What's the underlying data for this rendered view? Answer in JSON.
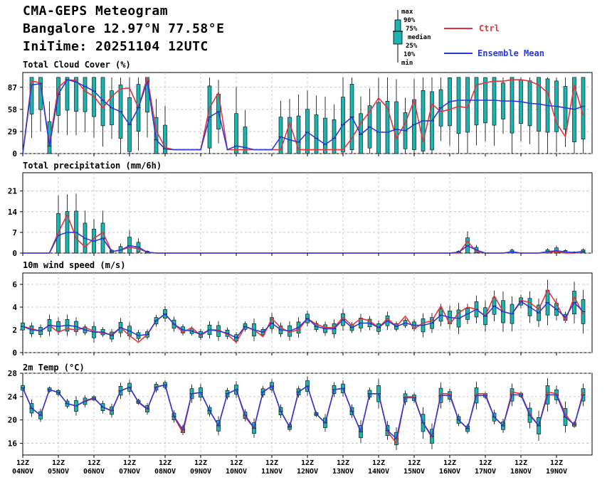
{
  "header": {
    "title": "CMA-GEPS Meteogram",
    "location": "Bangalore 12.97°N 77.58°E",
    "init": "IniTime: 20251104 12UTC"
  },
  "legend": {
    "box_labels": [
      "max",
      "90%",
      "75%",
      "median",
      "25%",
      "10%",
      "min"
    ],
    "ctrl": "Ctrl",
    "mean": "Ensemble Mean",
    "ctrl_color": "#e8333a",
    "mean_color": "#2b3bd9",
    "box_color": "#1ab5b0"
  },
  "panels": {
    "cloud": "Total Cloud Cover (%)",
    "precip": "Total precipitation (mm/6h)",
    "wind": "10m wind speed (m/s)",
    "temp": "2m Temp (°C)"
  },
  "chart_data": [
    {
      "type": "line",
      "title": "Total Cloud Cover (%)",
      "x_start": "04NOV 12Z",
      "x_step_hours": 6,
      "ylim": [
        0,
        100
      ],
      "yticks": [
        0,
        29,
        58,
        87
      ],
      "series": [
        {
          "name": "Ctrl",
          "values": [
            0,
            95,
            93,
            12,
            87,
            97,
            96,
            82,
            75,
            60,
            75,
            85,
            86,
            60,
            100,
            30,
            8,
            5,
            5,
            5,
            5,
            60,
            80,
            5,
            5,
            5,
            5,
            5,
            5,
            5,
            40,
            5,
            5,
            5,
            5,
            5,
            5,
            20,
            40,
            55,
            73,
            60,
            20,
            40,
            70,
            15,
            65,
            55,
            58,
            62,
            60,
            90,
            93,
            95,
            95,
            97,
            97,
            95,
            90,
            80,
            40,
            22,
            90,
            50
          ]
        },
        {
          "name": "Ensemble Mean",
          "values": [
            0,
            90,
            92,
            10,
            78,
            97,
            94,
            88,
            82,
            70,
            60,
            55,
            38,
            60,
            95,
            18,
            6,
            5,
            5,
            5,
            5,
            48,
            55,
            5,
            10,
            8,
            5,
            5,
            5,
            22,
            18,
            15,
            28,
            20,
            12,
            20,
            38,
            48,
            25,
            35,
            28,
            28,
            32,
            30,
            38,
            43,
            43,
            60,
            68,
            70,
            70,
            70,
            70,
            70,
            69,
            69,
            68,
            66,
            65,
            63,
            62,
            60,
            58,
            62
          ]
        }
      ],
      "box_note": "ensemble box plot at each step (min, 10%, 25%, median, 75%, 90%, max)"
    },
    {
      "type": "line",
      "title": "Total precipitation (mm/6h)",
      "x_start": "04NOV 12Z",
      "x_step_hours": 6,
      "ylim": [
        0,
        25
      ],
      "yticks": [
        0,
        7,
        14,
        21
      ],
      "series": [
        {
          "name": "Ctrl",
          "values": [
            0,
            0,
            0,
            0,
            7,
            13,
            5,
            2,
            5,
            7,
            0.5,
            1,
            2,
            1.5,
            0.3,
            0,
            0,
            0,
            0,
            0,
            0,
            0,
            0,
            0,
            0,
            0,
            0,
            0,
            0,
            0,
            0,
            0,
            0,
            0,
            0,
            0,
            0,
            0,
            0,
            0,
            0,
            0,
            0,
            0,
            0,
            0,
            0,
            0,
            0,
            0,
            4,
            0.5,
            0,
            0,
            0,
            0.3,
            0,
            0,
            0,
            0.2,
            0.5,
            0,
            0,
            0.3
          ]
        },
        {
          "name": "Ensemble Mean",
          "values": [
            0,
            0,
            0,
            0,
            6,
            7,
            7,
            5,
            4,
            5,
            0.5,
            1,
            2.5,
            2,
            0.3,
            0,
            0,
            0,
            0,
            0,
            0,
            0,
            0,
            0,
            0,
            0,
            0,
            0,
            0,
            0,
            0,
            0,
            0,
            0,
            0,
            0,
            0,
            0,
            0,
            0,
            0,
            0,
            0,
            0,
            0,
            0,
            0,
            0,
            0,
            0.3,
            2.5,
            1,
            0,
            0,
            0,
            0.5,
            0,
            0,
            0,
            0.5,
            0.8,
            0.4,
            0.2,
            0.6
          ]
        }
      ]
    },
    {
      "type": "line",
      "title": "10m wind speed (m/s)",
      "x_start": "04NOV 12Z",
      "x_step_hours": 6,
      "ylim": [
        0,
        7
      ],
      "yticks": [
        0,
        2,
        4,
        6
      ],
      "series": [
        {
          "name": "Ctrl",
          "values": [
            2.3,
            2.1,
            1.9,
            2.4,
            1.8,
            2.1,
            2.0,
            2.2,
            1.9,
            1.7,
            1.6,
            2.2,
            1.5,
            0.9,
            1.6,
            2.8,
            3.4,
            2.5,
            1.8,
            2.2,
            1.5,
            2.0,
            2.0,
            1.6,
            0.9,
            2.3,
            2.0,
            1.4,
            3.0,
            2.2,
            1.8,
            2.0,
            3.0,
            2.5,
            2.2,
            2.2,
            3.1,
            2.4,
            3.0,
            2.8,
            2.2,
            3.0,
            2.3,
            3.2,
            2.1,
            2.6,
            2.8,
            4.1,
            2.5,
            3.5,
            4.0,
            3.8,
            3.2,
            5.0,
            3.6,
            3.4,
            4.6,
            4.4,
            3.8,
            5.5,
            4.3,
            2.8,
            4.9,
            3.4
          ]
        },
        {
          "name": "Ensemble Mean",
          "values": [
            2.3,
            2.0,
            1.9,
            2.4,
            2.3,
            2.4,
            2.3,
            2.0,
            1.8,
            1.8,
            1.5,
            2.2,
            1.9,
            1.5,
            1.6,
            2.8,
            3.4,
            2.5,
            2.0,
            1.9,
            1.6,
            2.0,
            1.9,
            1.7,
            1.3,
            2.3,
            2.0,
            1.8,
            2.6,
            2.0,
            1.9,
            2.2,
            3.0,
            2.3,
            2.1,
            2.1,
            2.9,
            2.2,
            2.6,
            2.6,
            2.2,
            2.8,
            2.3,
            2.6,
            2.4,
            2.4,
            2.6,
            3.3,
            3.1,
            3.0,
            3.4,
            3.8,
            3.2,
            4.1,
            3.6,
            3.4,
            4.5,
            4.0,
            3.5,
            4.4,
            3.8,
            3.1,
            4.4,
            3.6
          ]
        }
      ]
    },
    {
      "type": "line",
      "title": "2m Temp (°C)",
      "x_start": "04NOV 12Z",
      "x_step_hours": 6,
      "ylim": [
        14,
        28
      ],
      "yticks": [
        16,
        20,
        24,
        28
      ],
      "x_tick_labels": [
        "12Z\n04NOV",
        "12Z\n05NOV",
        "12Z\n06NOV",
        "12Z\n07NOV",
        "12Z\n08NOV",
        "12Z\n09NOV",
        "12Z\n10NOV",
        "12Z\n11NOV",
        "12Z\n12NOV",
        "12Z\n13NOV",
        "12Z\n14NOV",
        "12Z\n15NOV",
        "12Z\n16NOV",
        "12Z\n17NOV",
        "12Z\n18NOV",
        "12Z\n19NOV"
      ],
      "series": [
        {
          "name": "Ctrl",
          "values": [
            25.5,
            22.0,
            20.8,
            25.2,
            24.7,
            22.8,
            22.4,
            23.3,
            23.8,
            22.2,
            21.5,
            25.0,
            25.6,
            23.0,
            21.8,
            25.7,
            26.0,
            20.5,
            17.8,
            24.5,
            24.7,
            21.6,
            19.0,
            24.5,
            25.2,
            20.5,
            18.6,
            24.8,
            25.8,
            21.5,
            18.8,
            24.8,
            25.8,
            21.0,
            19.5,
            25.2,
            25.4,
            21.5,
            18.0,
            24.5,
            24.5,
            18.0,
            16.0,
            24.0,
            24.0,
            19.5,
            17.0,
            24.5,
            24.5,
            20.0,
            18.5,
            24.5,
            24.5,
            20.5,
            19.0,
            24.8,
            24.5,
            21.0,
            19.0,
            24.8,
            24.5,
            21.0,
            19.0,
            24.8
          ]
        },
        {
          "name": "Ensemble Mean",
          "values": [
            25.5,
            22.0,
            20.8,
            25.2,
            24.7,
            22.8,
            22.4,
            23.2,
            23.7,
            22.2,
            21.6,
            25.0,
            25.6,
            23.1,
            21.9,
            25.6,
            26.0,
            20.6,
            18.3,
            24.5,
            24.7,
            21.6,
            19.0,
            24.5,
            25.2,
            20.8,
            18.6,
            24.8,
            25.8,
            21.5,
            18.8,
            24.8,
            25.8,
            21.0,
            19.5,
            25.2,
            25.4,
            21.5,
            18.0,
            24.5,
            24.5,
            18.2,
            16.8,
            23.8,
            23.8,
            19.5,
            17.2,
            24.2,
            24.2,
            20.0,
            18.5,
            24.2,
            24.2,
            20.5,
            19.0,
            24.3,
            24.3,
            20.8,
            19.0,
            24.3,
            24.3,
            20.5,
            19.2,
            24.3
          ]
        }
      ]
    }
  ]
}
